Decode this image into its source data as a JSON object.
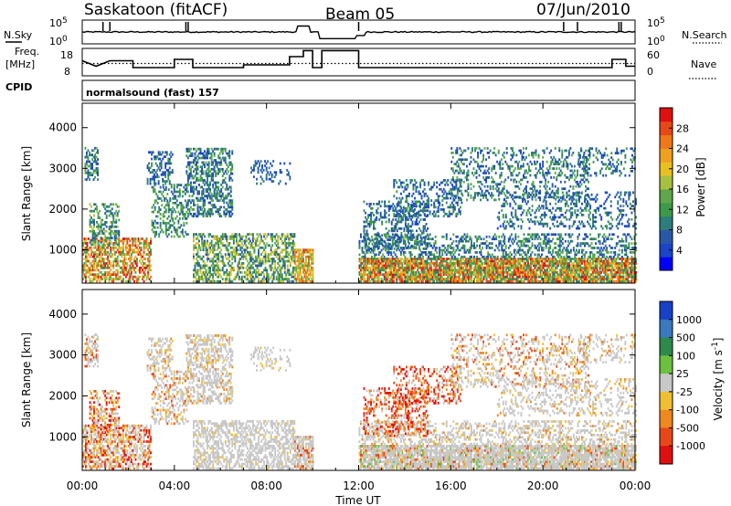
{
  "header": {
    "title": "Saskatoon (fitACF)",
    "beam": "Beam 05",
    "date": "07/Jun/2010"
  },
  "sky_panel": {
    "left_label": "N.Sky",
    "left_ticks": [
      "10^5",
      "10^0"
    ],
    "right_label": "N.Search",
    "right_ticks": [
      "10^5",
      "10^0"
    ]
  },
  "freq_panel": {
    "left_label_1": "Freq.",
    "left_label_2": "[MHz]",
    "left_ticks": [
      "18",
      "8"
    ],
    "right_label": "Nave",
    "right_ticks": [
      "60",
      "0"
    ]
  },
  "cpid": {
    "label": "CPID",
    "value": "normalsound (fast) 157"
  },
  "x_axis": {
    "label": "Time UT",
    "ticks": [
      "00:00",
      "04:00",
      "08:00",
      "12:00",
      "16:00",
      "20:00",
      "00:00"
    ]
  },
  "chart_data": [
    {
      "type": "heatmap",
      "quantity": "Power",
      "ylabel": "Slant Range [km]",
      "yticks": [
        1000,
        2000,
        3000,
        4000
      ],
      "ylim": [
        180,
        4600
      ],
      "xlim_hours": [
        0,
        24
      ],
      "colorbar": {
        "label": "Power [dB]",
        "ticks": [
          "4",
          "8",
          "12",
          "16",
          "20",
          "24",
          "28"
        ],
        "colors": [
          "#0000ff",
          "#1b45c8",
          "#2a58a8",
          "#2e7d7d",
          "#3d9a4a",
          "#5ea84a",
          "#a8c040",
          "#e8c020",
          "#f0a020",
          "#f07818",
          "#e84818",
          "#e01010"
        ]
      }
    },
    {
      "type": "heatmap",
      "quantity": "Velocity",
      "ylabel": "Slant Range [km]",
      "yticks": [
        1000,
        2000,
        3000,
        4000
      ],
      "ylim": [
        180,
        4600
      ],
      "xlim_hours": [
        0,
        24
      ],
      "colorbar": {
        "label": "Velocity [m s^-1]",
        "ticks": [
          "1000",
          "500",
          "100",
          "25",
          "-25",
          "-100",
          "-500",
          "-1000"
        ],
        "colors": [
          "#1840c8",
          "#3a78c0",
          "#2e8a4a",
          "#6cc040",
          "#c8c8c8",
          "#f0c030",
          "#f08820",
          "#e84818",
          "#e01010"
        ]
      }
    }
  ]
}
